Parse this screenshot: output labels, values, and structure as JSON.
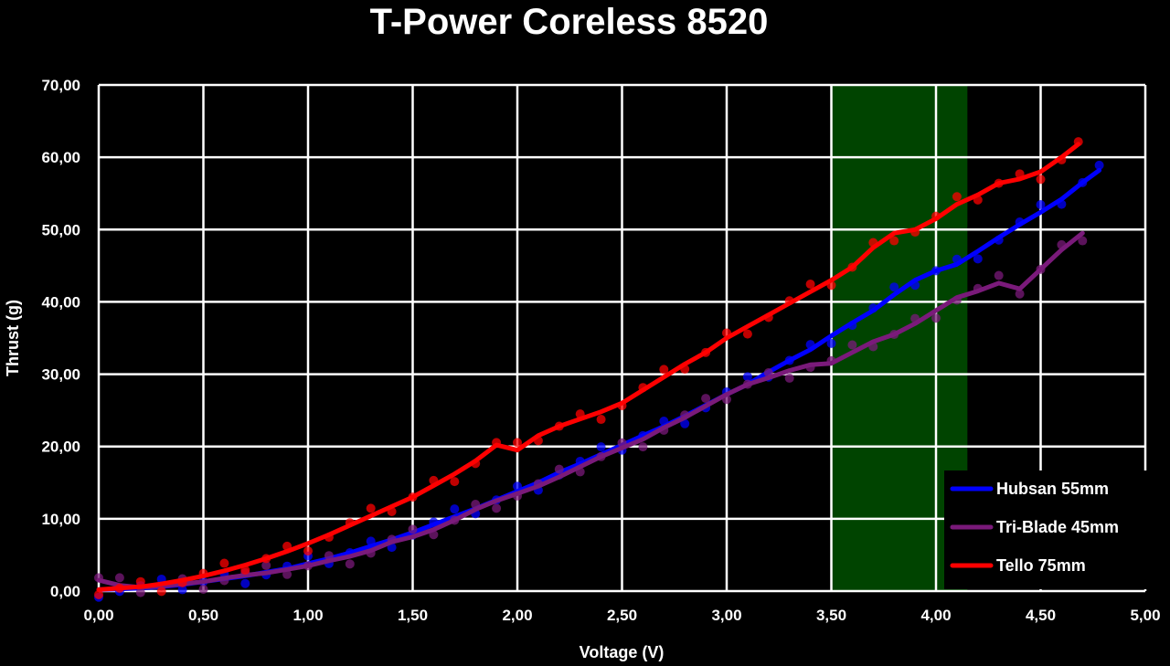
{
  "chart_data": {
    "type": "scatter",
    "title": "T-Power Coreless 8520",
    "xlabel": "Voltage (V)",
    "ylabel": "Thrust (g)",
    "xlim": [
      0,
      5
    ],
    "ylim": [
      0,
      70
    ],
    "x_ticks": [
      "0,00",
      "0,50",
      "1,00",
      "1,50",
      "2,00",
      "2,50",
      "3,00",
      "3,50",
      "4,00",
      "4,50",
      "5,00"
    ],
    "y_ticks": [
      "0,00",
      "10,00",
      "20,00",
      "30,00",
      "40,00",
      "50,00",
      "60,00",
      "70,00"
    ],
    "grid": true,
    "background": "#000000",
    "highlight_region": {
      "x_from": 3.5,
      "x_to": 4.15,
      "color": "#004400"
    },
    "legend_position": "bottom-right",
    "series": [
      {
        "name": "Hubsan 55mm",
        "color": "#0000ff",
        "x": [
          0.0,
          0.1,
          0.2,
          0.3,
          0.4,
          0.5,
          0.6,
          0.7,
          0.8,
          0.9,
          1.0,
          1.1,
          1.2,
          1.3,
          1.4,
          1.5,
          1.6,
          1.7,
          1.8,
          1.9,
          2.0,
          2.1,
          2.2,
          2.3,
          2.4,
          2.5,
          2.6,
          2.7,
          2.8,
          2.9,
          3.0,
          3.1,
          3.2,
          3.3,
          3.4,
          3.5,
          3.6,
          3.7,
          3.8,
          3.9,
          4.0,
          4.1,
          4.2,
          4.3,
          4.4,
          4.5,
          4.6,
          4.7,
          4.78
        ],
        "y": [
          0.2,
          0.3,
          0.4,
          0.6,
          0.9,
          1.3,
          1.7,
          2.1,
          2.6,
          3.1,
          3.8,
          4.5,
          5.3,
          6.2,
          7.1,
          8.1,
          9.2,
          10.3,
          11.4,
          12.6,
          13.8,
          15.0,
          16.4,
          17.6,
          18.9,
          20.2,
          21.5,
          22.8,
          24.2,
          25.7,
          27.2,
          28.6,
          30.3,
          31.9,
          33.4,
          35.3,
          37.1,
          38.8,
          41.0,
          43.0,
          44.3,
          45.2,
          47.0,
          48.9,
          50.7,
          52.4,
          54.2,
          56.5,
          58.2
        ]
      },
      {
        "name": "Tri-Blade 45mm",
        "color": "#7a1a7a",
        "x": [
          0.0,
          0.1,
          0.2,
          0.3,
          0.4,
          0.5,
          0.6,
          0.7,
          0.8,
          0.9,
          1.0,
          1.1,
          1.2,
          1.3,
          1.4,
          1.5,
          1.6,
          1.7,
          1.8,
          1.9,
          2.0,
          2.1,
          2.2,
          2.3,
          2.4,
          2.5,
          2.6,
          2.7,
          2.8,
          2.9,
          3.0,
          3.1,
          3.2,
          3.3,
          3.4,
          3.5,
          3.6,
          3.7,
          3.8,
          3.9,
          4.0,
          4.1,
          4.2,
          4.3,
          4.4,
          4.5,
          4.6,
          4.7
        ],
        "y": [
          1.5,
          0.8,
          0.5,
          0.7,
          1.0,
          1.3,
          1.8,
          2.2,
          2.5,
          3.0,
          3.5,
          4.2,
          4.8,
          5.6,
          6.8,
          7.5,
          8.5,
          9.8,
          11.3,
          12.5,
          13.5,
          14.5,
          15.8,
          17.2,
          18.6,
          19.8,
          21.0,
          22.6,
          24.0,
          25.6,
          27.2,
          28.6,
          29.5,
          30.5,
          31.3,
          31.5,
          33.0,
          34.5,
          35.5,
          37.0,
          38.8,
          40.6,
          41.5,
          42.6,
          41.8,
          44.5,
          47.2,
          49.5
        ]
      },
      {
        "name": "Tello 75mm",
        "color": "#ff0000",
        "x": [
          0.0,
          0.1,
          0.2,
          0.3,
          0.4,
          0.5,
          0.6,
          0.7,
          0.8,
          0.9,
          1.0,
          1.1,
          1.2,
          1.3,
          1.4,
          1.5,
          1.6,
          1.7,
          1.8,
          1.9,
          2.0,
          2.1,
          2.2,
          2.3,
          2.4,
          2.5,
          2.6,
          2.7,
          2.8,
          2.9,
          3.0,
          3.1,
          3.2,
          3.3,
          3.4,
          3.5,
          3.6,
          3.7,
          3.8,
          3.9,
          4.0,
          4.1,
          4.2,
          4.3,
          4.4,
          4.5,
          4.6,
          4.68
        ],
        "y": [
          0.2,
          0.4,
          0.6,
          1.0,
          1.5,
          2.1,
          2.8,
          3.6,
          4.5,
          5.5,
          6.6,
          7.8,
          9.1,
          10.4,
          11.7,
          13.0,
          14.6,
          16.2,
          18.0,
          20.2,
          19.5,
          21.5,
          22.8,
          23.8,
          24.8,
          26.0,
          27.8,
          29.6,
          31.4,
          33.0,
          35.0,
          36.6,
          38.2,
          39.8,
          41.4,
          43.0,
          44.8,
          47.5,
          49.5,
          50.0,
          51.5,
          53.5,
          54.8,
          56.4,
          57.0,
          58.0,
          60.0,
          61.8
        ]
      }
    ]
  }
}
